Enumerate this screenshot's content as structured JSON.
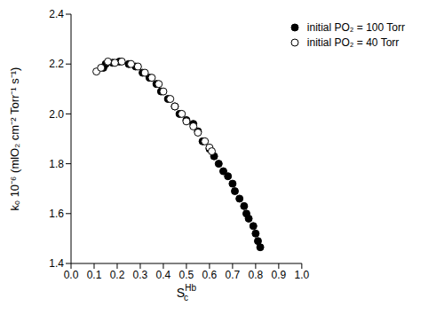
{
  "chart_data": {
    "type": "scatter",
    "x_label": {
      "text": "S",
      "superscript": "Hb",
      "subscript": "c"
    },
    "y_label": "kₒ 10⁻⁶ (mlO₂ cm⁻² Torr⁻¹ s⁻¹)",
    "xlim": [
      0,
      1
    ],
    "xticks": [
      {
        "value": 0,
        "label": "0.0"
      },
      0.1,
      0.2,
      0.3,
      0.4,
      0.5,
      0.6,
      0.7,
      0.8,
      0.9,
      {
        "value": 1,
        "label": "1.0"
      }
    ],
    "ylim": [
      1.4,
      2.4
    ],
    "yticks": [
      1.4,
      1.6,
      1.8,
      {
        "value": 2,
        "label": "2.0"
      },
      2.2,
      2.4
    ],
    "legend": "upper right",
    "series": [
      {
        "name": "initial PO₂ = 100 Torr",
        "color": "#000000",
        "marker": "filled-circle",
        "x": [
          0.14,
          0.15,
          0.18,
          0.21,
          0.25,
          0.28,
          0.31,
          0.34,
          0.37,
          0.39,
          0.42,
          0.45,
          0.47,
          0.5,
          0.53,
          0.55,
          0.57,
          0.6,
          0.62,
          0.64,
          0.66,
          0.68,
          0.7,
          0.71,
          0.73,
          0.75,
          0.76,
          0.77,
          0.79,
          0.8,
          0.81,
          0.82
        ],
        "values": [
          2.185,
          2.2,
          2.205,
          2.21,
          2.2,
          2.19,
          2.165,
          2.145,
          2.12,
          2.09,
          2.06,
          2.03,
          2.0,
          1.975,
          1.96,
          1.93,
          1.89,
          1.86,
          1.83,
          1.8,
          1.77,
          1.75,
          1.72,
          1.69,
          1.66,
          1.63,
          1.6,
          1.58,
          1.55,
          1.52,
          1.49,
          1.465
        ]
      },
      {
        "name": "initial PO₂ = 40 Torr",
        "color": "#000000",
        "marker": "open-circle",
        "x": [
          0.11,
          0.13,
          0.16,
          0.19,
          0.22,
          0.26,
          0.29,
          0.32,
          0.35,
          0.38,
          0.4,
          0.43,
          0.45,
          0.48,
          0.5,
          0.53,
          0.55,
          0.58,
          0.6,
          0.61
        ],
        "values": [
          2.17,
          2.185,
          2.21,
          2.205,
          2.21,
          2.2,
          2.19,
          2.165,
          2.145,
          2.12,
          2.09,
          2.06,
          2.03,
          2.0,
          1.97,
          1.95,
          1.925,
          1.89,
          1.865,
          1.85
        ]
      }
    ]
  }
}
